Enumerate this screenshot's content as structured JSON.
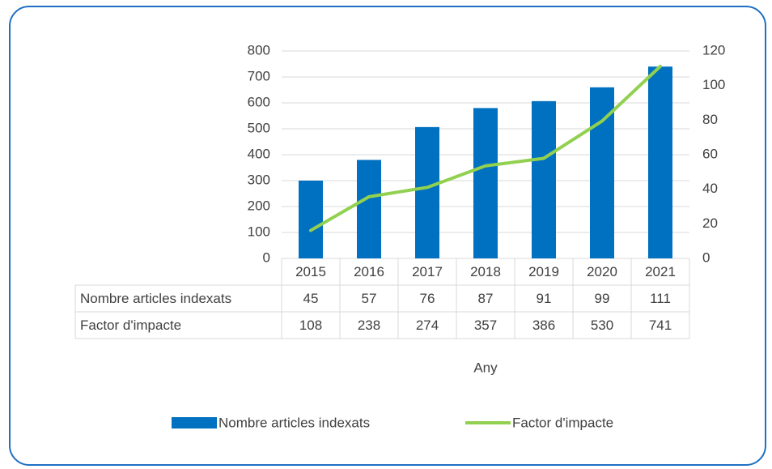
{
  "chart_data": {
    "type": "bar_line_table",
    "categories": [
      "2015",
      "2016",
      "2017",
      "2018",
      "2019",
      "2020",
      "2021"
    ],
    "series": [
      {
        "name": "Nombre articles indexats",
        "type": "bar",
        "color": "#0070c0",
        "axis": "y2",
        "values": [
          45,
          57,
          76,
          87,
          91,
          99,
          111
        ]
      },
      {
        "name": "Factor d'impacte",
        "type": "line",
        "color": "#92d050",
        "axis": "y",
        "values": [
          108,
          238,
          274,
          357,
          386,
          530,
          741
        ]
      }
    ],
    "ylim": [
      0,
      800
    ],
    "yticks": [
      0,
      100,
      200,
      300,
      400,
      500,
      600,
      700,
      800
    ],
    "y2lim": [
      0,
      120
    ],
    "y2ticks": [
      0,
      20,
      40,
      60,
      80,
      100,
      120
    ],
    "x_label": "Any",
    "grid": true,
    "legend": "bottom"
  }
}
